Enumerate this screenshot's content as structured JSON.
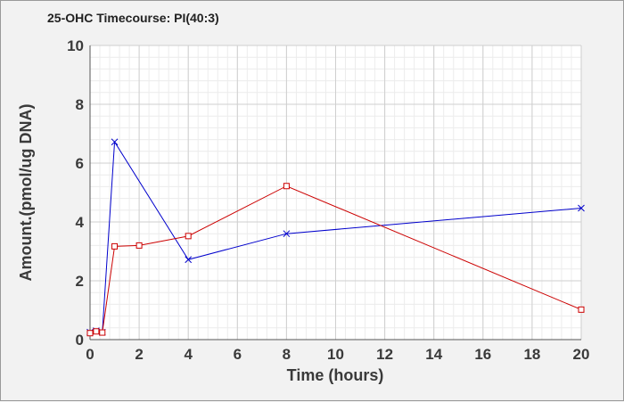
{
  "chart_data": {
    "type": "line",
    "title": "25-OHC Timecourse: PI(40:3)",
    "xlabel": "Time (hours)",
    "ylabel": "Amount.(pmol/ug DNA)",
    "xlim": [
      0,
      20
    ],
    "ylim": [
      0,
      10
    ],
    "xticks": [
      0,
      2,
      4,
      6,
      8,
      10,
      12,
      14,
      16,
      18,
      20
    ],
    "yticks": [
      0,
      2,
      4,
      6,
      8,
      10
    ],
    "grid": true,
    "legend": "none",
    "series": [
      {
        "color": "#0000cc",
        "marker": "x",
        "x": [
          0,
          0.25,
          0.5,
          1,
          4,
          8,
          20
        ],
        "y": [
          0.25,
          0.3,
          0.25,
          6.72,
          2.72,
          3.6,
          4.47
        ]
      },
      {
        "color": "#cc0000",
        "marker": "square",
        "x": [
          0,
          0.25,
          0.5,
          1,
          2,
          4,
          8,
          20
        ],
        "y": [
          0.22,
          0.28,
          0.24,
          3.17,
          3.2,
          3.52,
          5.22,
          1.02
        ]
      }
    ]
  }
}
